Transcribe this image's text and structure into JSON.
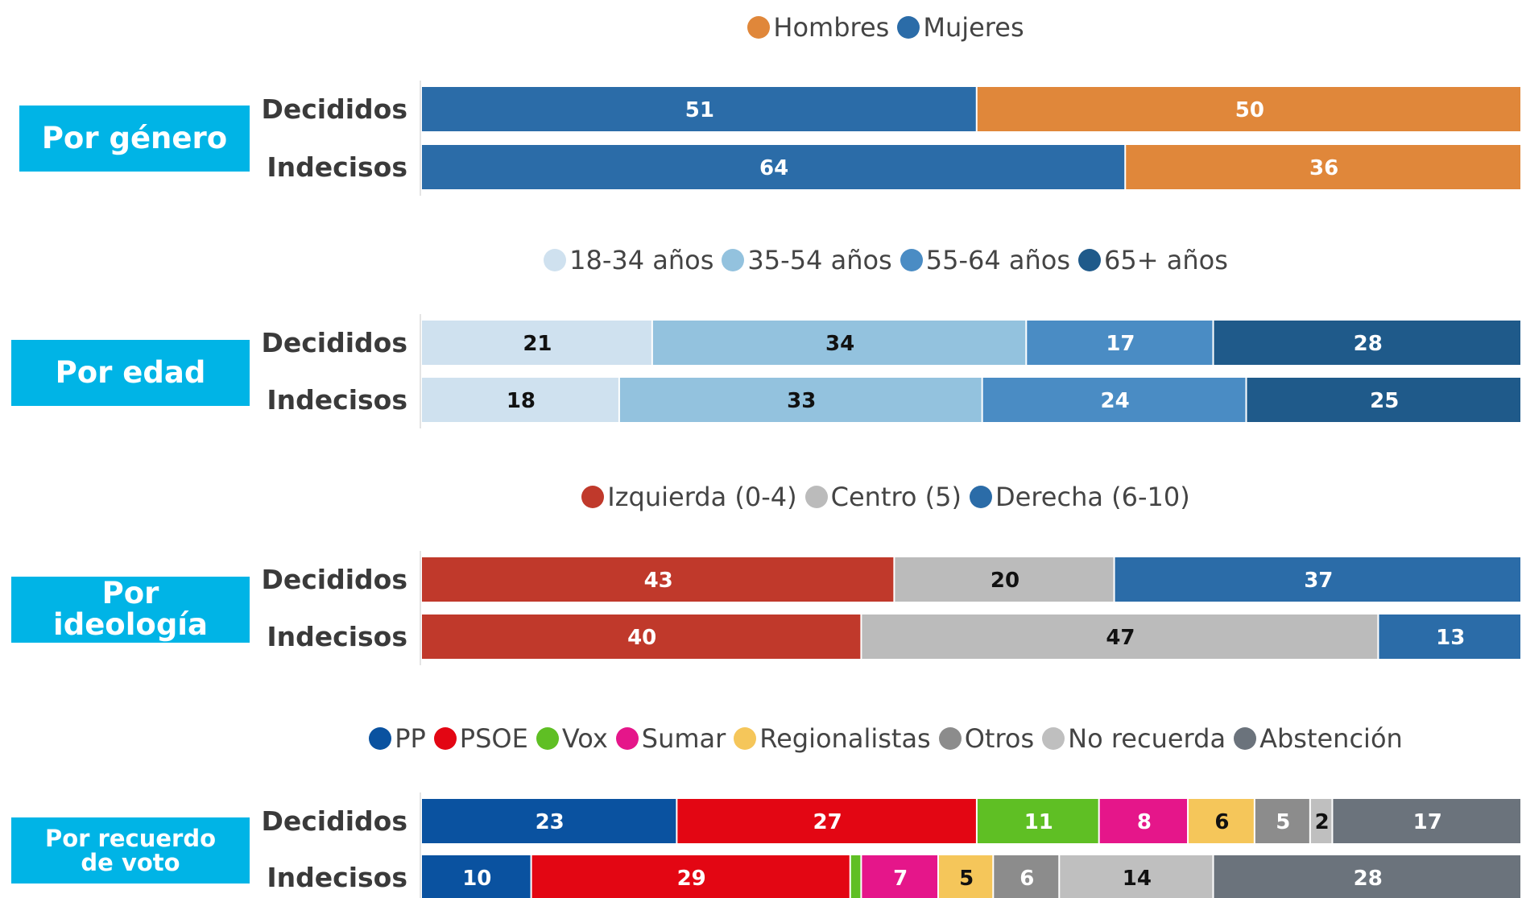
{
  "chart_data": [
    {
      "type": "stacked_bar",
      "title": "Por género",
      "categories": [
        "Decididos",
        "Indecisos"
      ],
      "reverse_stack": true,
      "series": [
        {
          "name": "Hombres",
          "color": "#e0873a",
          "values": [
            50,
            36
          ]
        },
        {
          "name": "Mujeres",
          "color": "#2b6ca8",
          "values": [
            51,
            64
          ]
        }
      ]
    },
    {
      "type": "stacked_bar",
      "title": "Por edad",
      "categories": [
        "Decididos",
        "Indecisos"
      ],
      "series": [
        {
          "name": "18-34 años",
          "color": "#cfe1ef",
          "values": [
            21,
            18
          ]
        },
        {
          "name": "35-54 años",
          "color": "#93c2de",
          "values": [
            34,
            33
          ]
        },
        {
          "name": "55-64 años",
          "color": "#4a8cc4",
          "values": [
            17,
            24
          ]
        },
        {
          "name": "65+ años",
          "color": "#1f5a8a",
          "values": [
            28,
            25
          ]
        }
      ]
    },
    {
      "type": "stacked_bar",
      "title": "Por ideología",
      "categories": [
        "Decididos",
        "Indecisos"
      ],
      "series": [
        {
          "name": "Izquierda (0-4)",
          "color": "#c0392b",
          "values": [
            43,
            40
          ]
        },
        {
          "name": "Centro (5)",
          "color": "#bbbbbb",
          "values": [
            20,
            47
          ]
        },
        {
          "name": "Derecha (6-10)",
          "color": "#2b6ca8",
          "values": [
            37,
            13
          ]
        }
      ]
    },
    {
      "type": "stacked_bar",
      "title": "Por recuerdo de voto",
      "categories": [
        "Decididos",
        "Indecisos"
      ],
      "series": [
        {
          "name": "PP",
          "color": "#0a52a0",
          "values": [
            23,
            10
          ]
        },
        {
          "name": "PSOE",
          "color": "#e30613",
          "values": [
            27,
            29
          ]
        },
        {
          "name": "Vox",
          "color": "#5fbf24",
          "values": [
            11,
            1
          ]
        },
        {
          "name": "Sumar",
          "color": "#e5168a",
          "values": [
            8,
            7
          ]
        },
        {
          "name": "Regionalistas",
          "color": "#f5c65a",
          "values": [
            6,
            5
          ]
        },
        {
          "name": "Otros",
          "color": "#8c8c8c",
          "values": [
            5,
            6
          ]
        },
        {
          "name": "No recuerda",
          "color": "#bfbfbf",
          "values": [
            2,
            14
          ]
        },
        {
          "name": "Abstención",
          "color": "#6b737c",
          "values": [
            17,
            28
          ]
        }
      ]
    }
  ]
}
